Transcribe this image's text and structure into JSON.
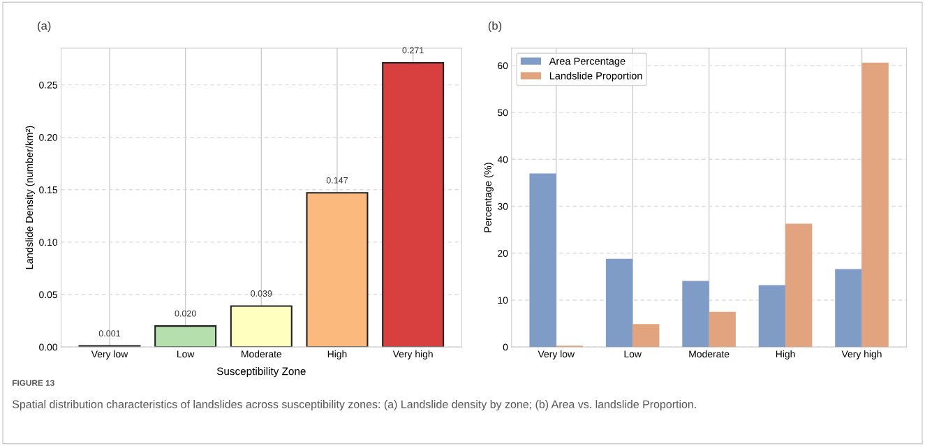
{
  "chart_data": [
    {
      "type": "bar",
      "title": "(a)",
      "xlabel": "Susceptibility Zone",
      "ylabel": "Landslide Density (number/km²)",
      "categories": [
        "Very low",
        "Low",
        "Moderate",
        "High",
        "Very high"
      ],
      "values": [
        0.001,
        0.02,
        0.039,
        0.147,
        0.271
      ],
      "colors": [
        "#2e4a66",
        "#b5dfac",
        "#ffffc0",
        "#fbb97d",
        "#d7403f"
      ],
      "value_labels": [
        "0.001",
        "0.020",
        "0.039",
        "0.147",
        "0.271"
      ],
      "ylim": [
        0,
        0.285
      ],
      "yticks": [
        {
          "value": 0,
          "label": "0.00"
        },
        {
          "value": 0.05,
          "label": "0.05"
        },
        {
          "value": 0.1,
          "label": "0.10"
        },
        {
          "value": 0.15,
          "label": "0.15"
        },
        {
          "value": 0.2,
          "label": "0.20"
        },
        {
          "value": 0.25,
          "label": "0.25"
        }
      ],
      "grid": true,
      "annotations": [
        "FIGURE 13",
        "Spatial distribution characteristics of landslides across susceptibility zones: (a) Landslide density by zone; (b) Area vs. landslide Proportion."
      ]
    },
    {
      "type": "bar",
      "title": "(b)",
      "ylabel": "Percentage (%)",
      "categories": [
        "Very low",
        "Low",
        "Moderate",
        "High",
        "Very high"
      ],
      "series": [
        {
          "name": "Area Percentage",
          "color": "#7f9cc6",
          "values": [
            37.0,
            18.8,
            14.1,
            13.2,
            16.6
          ]
        },
        {
          "name": "Landslide Proportion",
          "color": "#e2a47e",
          "values": [
            0.3,
            4.9,
            7.5,
            26.3,
            60.6
          ]
        }
      ],
      "ylim": [
        0,
        63.7
      ],
      "yticks": [
        0,
        10,
        20,
        30,
        40,
        50,
        60
      ],
      "grid": true,
      "legend": "top left"
    }
  ]
}
